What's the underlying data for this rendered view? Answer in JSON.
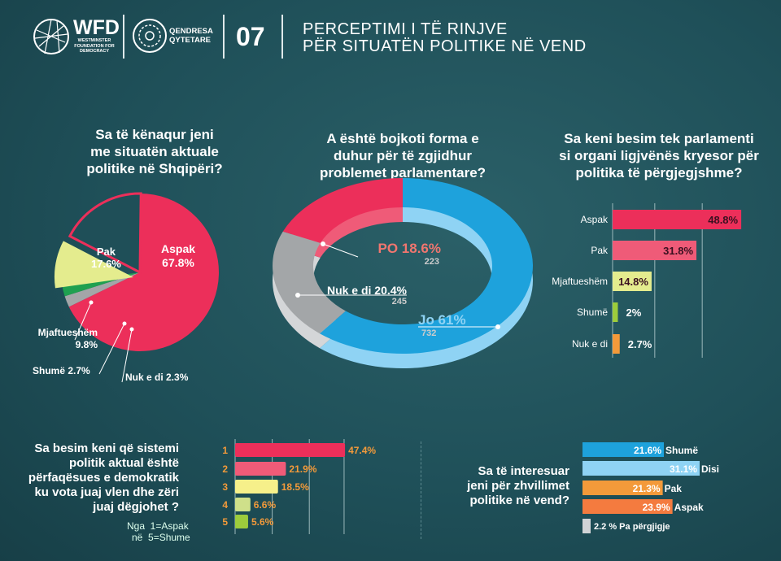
{
  "header": {
    "logo1_title": "WFD",
    "logo1_sub": [
      "WESTMINSTER",
      "FOUNDATION FOR",
      "DEMOCRACY"
    ],
    "logo2": [
      "QENDRESA",
      "QYTETARE"
    ],
    "number": "07",
    "title": [
      "PERCEPTIMI I TË RINJVE",
      "PËR SITUATËN POLITIKE NË VEND"
    ]
  },
  "colors": {
    "red": "#ec2f5a",
    "pink": "#ef5b78",
    "yellow": "#e4ec8e",
    "green": "#1fa050",
    "grey": "#a3a6a8",
    "blue": "#1ea2dc",
    "lightblue": "#8fd3f4",
    "orange": "#f39a3a",
    "orange2": "#f47b3f"
  },
  "chart_data": [
    {
      "type": "pie",
      "title": "Sa të kënaqur jeni me situatën aktuale politike në Shqipëri?",
      "slices": [
        {
          "label": "Aspak",
          "value": 67.8,
          "text": "67.8%"
        },
        {
          "label": "Nuk e di",
          "value": 2.3,
          "text": "Nuk e di 2.3%"
        },
        {
          "label": "Shumë",
          "value": 2.7,
          "text": "Shumë 2.7%"
        },
        {
          "label": "Mjaftueshëm",
          "value": 9.8,
          "text": "9.8%"
        },
        {
          "label": "Pak",
          "value": 17.6,
          "text": "17.6%"
        }
      ]
    },
    {
      "type": "pie",
      "subtype": "donut",
      "title": "A është bojkoti forma e duhur për të zgjidhur problemet parlamentare?",
      "slices": [
        {
          "label": "Jo",
          "value": 61,
          "count": "732",
          "text": "Jo 61%"
        },
        {
          "label": "Nuk e di",
          "value": 20.4,
          "count": "245",
          "text": "Nuk e di 20.4%"
        },
        {
          "label": "PO",
          "value": 18.6,
          "count": "223",
          "text": "PO 18.6%"
        }
      ]
    },
    {
      "type": "bar",
      "orientation": "horizontal",
      "title": "Sa keni besim tek parlamenti si organi ligjvënës kryesor për politika të përgjegjshme?",
      "categories": [
        "Aspak",
        "Pak",
        "Mjaftueshëm",
        "Shumë",
        "Nuk e di"
      ],
      "values": [
        48.8,
        31.8,
        14.8,
        2,
        2.7
      ],
      "labels": [
        "48.8%",
        "31.8%",
        "14.8%",
        "2%",
        "2.7%"
      ],
      "xlim": [
        0,
        50
      ],
      "grid": true
    },
    {
      "type": "bar",
      "orientation": "horizontal",
      "title": "Sa besim keni që sistemi politik aktual është përfaqësues e demokratik ku vota juaj vlen dhe zëri juaj dëgjohet ?",
      "note": [
        "Nga  1=Aspak",
        "në  5=Shume"
      ],
      "categories": [
        "1",
        "2",
        "3",
        "4",
        "5"
      ],
      "values": [
        47.4,
        21.9,
        18.5,
        6.6,
        5.6
      ],
      "labels": [
        "47.4%",
        "21.9%",
        "18.5%",
        "6.6%",
        "5.6%"
      ],
      "xlim": [
        0,
        50
      ],
      "grid": true
    },
    {
      "type": "bar",
      "orientation": "horizontal",
      "title": "Sa të interesuar jeni për zhvillimet politike në vend?",
      "categories": [
        "Shumë",
        "Disi",
        "Pak",
        "Aspak",
        "Pa përgjigje"
      ],
      "values": [
        21.6,
        31.1,
        21.3,
        23.9,
        2.2
      ],
      "labels": [
        "21.6%",
        "31.1%",
        "21.3%",
        "23.9%",
        "2.2 % Pa përgjigje"
      ],
      "xlim": [
        0,
        35
      ]
    }
  ],
  "questions": {
    "q1": [
      "Sa të kënaqur jeni",
      "me situatën aktuale",
      "politike në Shqipëri?"
    ],
    "q2": [
      "A është bojkoti forma e",
      "duhur për të zgjidhur",
      "problemet parlamentare?"
    ],
    "q3": [
      "Sa keni besim tek parlamenti",
      "si organi ligjvënës kryesor për",
      "politika të përgjegjshme?"
    ],
    "q4": [
      "Sa besim keni që sistemi",
      "politik aktual është",
      "përfaqësues e demokratik",
      "ku vota juaj vlen dhe zëri",
      "juaj dëgjohet ?"
    ],
    "q5": [
      "Sa të interesuar",
      "jeni për zhvillimet",
      "politike në vend?"
    ]
  }
}
